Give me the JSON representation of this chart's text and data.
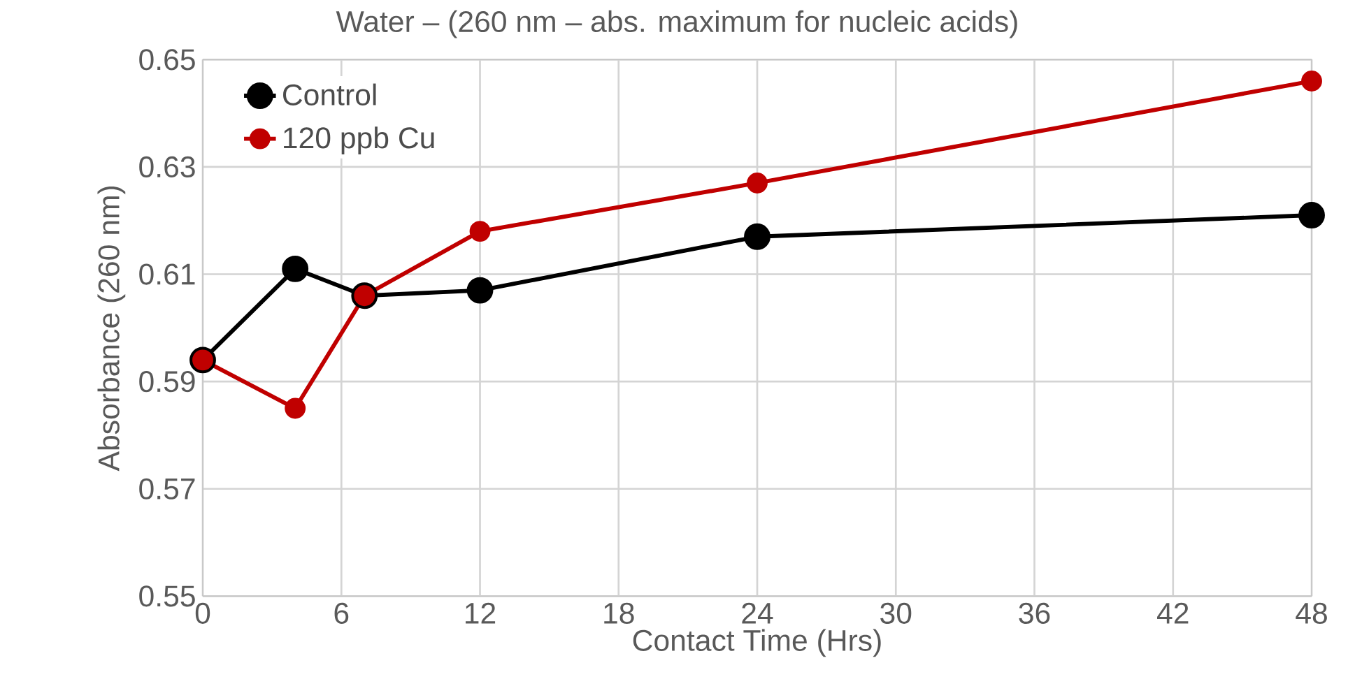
{
  "chart_data": {
    "type": "line",
    "title": "Water – (260 nm – abs. maximum for nucleic acids)",
    "xlabel": "Contact Time (Hrs)",
    "ylabel": "Absorbance (260 nm)",
    "x": [
      0,
      4,
      7,
      12,
      24,
      48
    ],
    "series": [
      {
        "name": "Control",
        "color": "#000000",
        "values": [
          0.594,
          0.611,
          0.606,
          0.607,
          0.617,
          0.621
        ]
      },
      {
        "name": "120 ppb Cu",
        "color": "#c00000",
        "values": [
          0.594,
          0.585,
          0.606,
          0.618,
          0.627,
          0.646
        ]
      }
    ],
    "xlim": [
      0,
      48
    ],
    "ylim": [
      0.55,
      0.65
    ],
    "xticks": [
      0,
      6,
      12,
      18,
      24,
      30,
      36,
      42,
      48
    ],
    "yticks": [
      0.55,
      0.57,
      0.59,
      0.61,
      0.63,
      0.65
    ],
    "grid": true,
    "legend": "top left",
    "marker": "circle",
    "line_style": "solid"
  }
}
